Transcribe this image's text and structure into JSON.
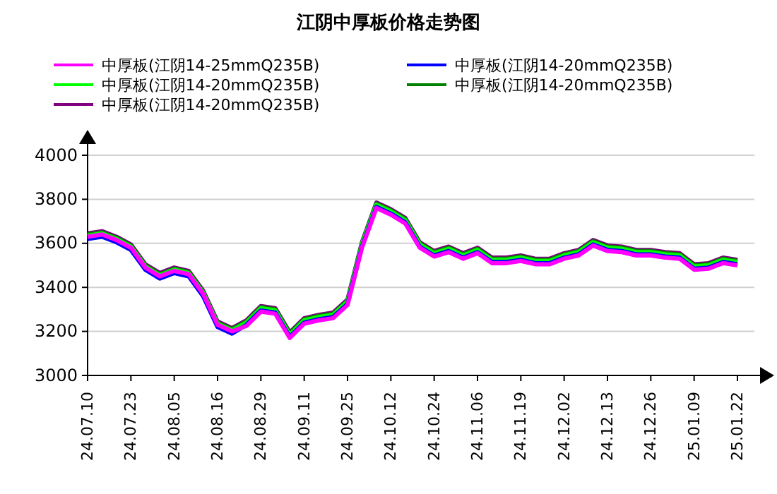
{
  "chart_data": {
    "type": "line",
    "title": "江阴中厚板价格走势图",
    "categories": [
      "24.07.10",
      null,
      null,
      "24.07.23",
      null,
      null,
      "24.08.05",
      null,
      null,
      "24.08.16",
      null,
      null,
      "24.08.29",
      null,
      null,
      "24.09.11",
      null,
      null,
      "24.09.25",
      null,
      null,
      "24.10.12",
      null,
      null,
      "24.10.24",
      null,
      null,
      "24.11.06",
      null,
      null,
      "24.11.19",
      null,
      null,
      "24.12.02",
      null,
      null,
      "24.12.13",
      null,
      null,
      "24.12.26",
      null,
      null,
      "25.01.09",
      null,
      null,
      "25.01.22"
    ],
    "series": [
      {
        "name": "中厚板(江阴14-25mmQ235B)",
        "color": "#ff00ff",
        "values": [
          3630,
          3640,
          3615,
          3580,
          3490,
          3450,
          3475,
          3460,
          3370,
          3230,
          3200,
          3225,
          3290,
          3280,
          3170,
          3235,
          3250,
          3260,
          3320,
          3580,
          3760,
          3730,
          3690,
          3580,
          3540,
          3560,
          3530,
          3555,
          3510,
          3510,
          3520,
          3505,
          3505,
          3530,
          3545,
          3590,
          3565,
          3560,
          3545,
          3545,
          3535,
          3530,
          3480,
          3485,
          3510,
          3500
        ]
      },
      {
        "name": "中厚板(江阴14-20mmQ235B)",
        "color": "#0000ff",
        "values": [
          3620,
          3630,
          3605,
          3570,
          3480,
          3440,
          3465,
          3450,
          3360,
          3220,
          3190,
          3230,
          3295,
          3285,
          3175,
          3240,
          3255,
          3265,
          3325,
          3585,
          3765,
          3735,
          3695,
          3585,
          3545,
          3565,
          3535,
          3560,
          3515,
          3515,
          3525,
          3510,
          3510,
          3535,
          3550,
          3595,
          3570,
          3565,
          3550,
          3550,
          3540,
          3535,
          3485,
          3490,
          3515,
          3505
        ]
      },
      {
        "name": "中厚板(江阴14-20mmQ235B)",
        "color": "#00ff00",
        "values": [
          3635,
          3645,
          3620,
          3585,
          3495,
          3455,
          3480,
          3465,
          3375,
          3235,
          3205,
          3240,
          3305,
          3295,
          3185,
          3250,
          3265,
          3275,
          3335,
          3595,
          3775,
          3745,
          3705,
          3595,
          3555,
          3575,
          3545,
          3570,
          3525,
          3525,
          3535,
          3520,
          3520,
          3545,
          3560,
          3605,
          3580,
          3575,
          3560,
          3560,
          3550,
          3545,
          3495,
          3500,
          3525,
          3515
        ]
      },
      {
        "name": "中厚板(江阴14-20mmQ235B)",
        "color": "#008000",
        "values": [
          3640,
          3650,
          3625,
          3590,
          3500,
          3460,
          3485,
          3470,
          3380,
          3240,
          3210,
          3245,
          3310,
          3300,
          3190,
          3255,
          3270,
          3280,
          3340,
          3600,
          3780,
          3750,
          3710,
          3600,
          3560,
          3580,
          3550,
          3575,
          3530,
          3530,
          3540,
          3525,
          3525,
          3550,
          3565,
          3610,
          3585,
          3580,
          3565,
          3565,
          3555,
          3550,
          3500,
          3505,
          3530,
          3520
        ]
      },
      {
        "name": "中厚板(江阴14-20mmQ235B)",
        "color": "#800080",
        "values": [
          3645,
          3655,
          3630,
          3595,
          3505,
          3465,
          3490,
          3475,
          3385,
          3245,
          3215,
          3250,
          3315,
          3305,
          3195,
          3260,
          3275,
          3285,
          3345,
          3605,
          3785,
          3755,
          3715,
          3605,
          3565,
          3585,
          3555,
          3580,
          3535,
          3535,
          3545,
          3530,
          3530,
          3555,
          3570,
          3615,
          3590,
          3585,
          3570,
          3570,
          3560,
          3555,
          3505,
          3510,
          3535,
          3525
        ]
      }
    ],
    "ylim": [
      3000,
      4000
    ],
    "yticks": [
      3000,
      3200,
      3400,
      3600,
      3800,
      4000
    ],
    "grid": "y",
    "legend": "top",
    "marker": "none",
    "line_style": "solid"
  }
}
